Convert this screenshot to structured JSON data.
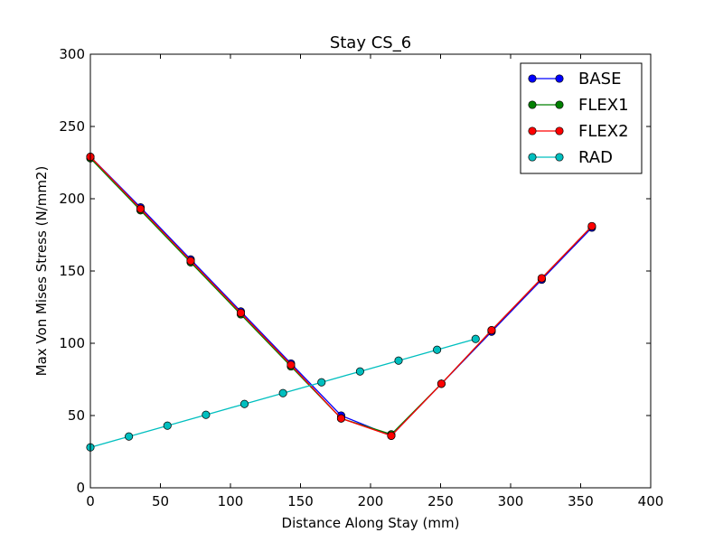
{
  "chart_data": {
    "type": "line",
    "title": "Stay CS_6",
    "xlabel": "Distance Along Stay (mm)",
    "ylabel": "Max Von Mises Stress (N/mm2)",
    "xlim": [
      0,
      400
    ],
    "ylim": [
      0,
      300
    ],
    "xticks": [
      "0",
      "50",
      "100",
      "150",
      "200",
      "250",
      "300",
      "350",
      "400"
    ],
    "yticks": [
      "0",
      "50",
      "100",
      "150",
      "200",
      "250",
      "300"
    ],
    "grid": false,
    "legend_position": "top-right",
    "series": [
      {
        "name": "BASE",
        "color": "#0000ff",
        "x": [
          0,
          35.8,
          71.6,
          107.4,
          143.2,
          179,
          214.8,
          250.6,
          286.4,
          322.2,
          358
        ],
        "y": [
          229,
          194,
          158,
          122,
          86,
          50,
          36,
          72,
          108,
          144,
          180
        ]
      },
      {
        "name": "FLEX1",
        "color": "#008000",
        "x": [
          0,
          35.8,
          71.6,
          107.4,
          143.2,
          179,
          214.8,
          250.6,
          286.4,
          322.2,
          358
        ],
        "y": [
          228,
          192,
          156,
          120,
          84,
          48,
          37,
          72,
          109,
          145,
          181
        ]
      },
      {
        "name": "FLEX2",
        "color": "#ff0000",
        "x": [
          0,
          35.8,
          71.6,
          107.4,
          143.2,
          179,
          214.8,
          250.6,
          286.4,
          322.2,
          358
        ],
        "y": [
          229,
          193,
          157,
          121,
          85,
          48,
          36,
          72,
          109,
          145,
          181
        ]
      },
      {
        "name": "RAD",
        "color": "#00bfbf",
        "x": [
          0,
          27.5,
          55,
          82.5,
          110,
          137.5,
          165,
          192.5,
          220,
          247.5,
          275
        ],
        "y": [
          28,
          35.5,
          43,
          50.5,
          58,
          65.5,
          73,
          80.5,
          88,
          95.5,
          103
        ]
      }
    ]
  }
}
